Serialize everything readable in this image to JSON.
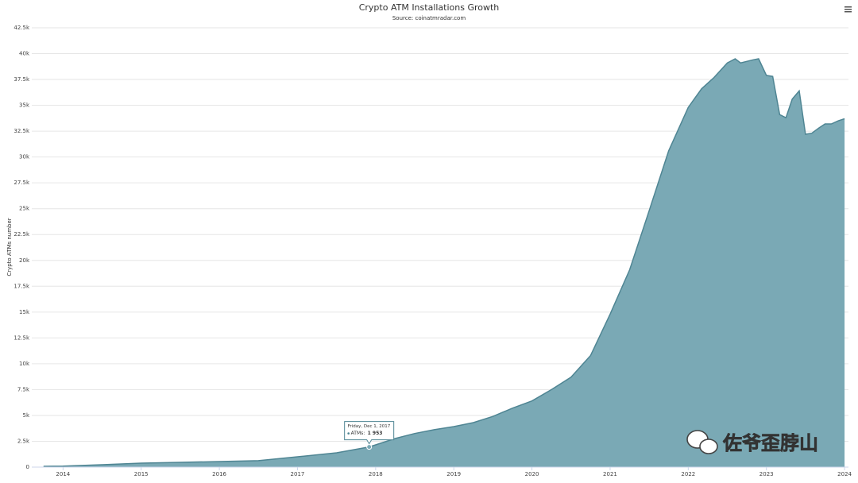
{
  "chart_data": {
    "type": "area",
    "title": "Crypto ATM Installations Growth",
    "subtitle": "Source: coinatmradar.com",
    "y_label": "Crypto ATMs number",
    "color": "#7aa9b5",
    "line_color": "#4f8593",
    "grid": true,
    "x": [
      2013.75,
      2014.0,
      2014.5,
      2015.0,
      2015.5,
      2016.0,
      2016.5,
      2017.0,
      2017.5,
      2017.917,
      2018.0,
      2018.25,
      2018.5,
      2018.75,
      2019.0,
      2019.25,
      2019.5,
      2019.75,
      2020.0,
      2020.25,
      2020.5,
      2020.75,
      2021.0,
      2021.25,
      2021.5,
      2021.75,
      2022.0,
      2022.17,
      2022.33,
      2022.5,
      2022.6,
      2022.67,
      2022.83,
      2022.9,
      2023.0,
      2023.08,
      2023.17,
      2023.25,
      2023.33,
      2023.42,
      2023.5,
      2023.58,
      2023.67,
      2023.75,
      2023.83,
      2023.92,
      2024.0
    ],
    "values": [
      80,
      100,
      230,
      385,
      460,
      540,
      620,
      1000,
      1380,
      1953,
      2150,
      2770,
      3250,
      3620,
      3920,
      4300,
      4900,
      5700,
      6400,
      7500,
      8700,
      10800,
      14800,
      19100,
      24800,
      30600,
      34800,
      36600,
      37700,
      39100,
      39500,
      39100,
      39400,
      39500,
      37900,
      37800,
      34100,
      33800,
      35600,
      36400,
      32200,
      32300,
      32800,
      33200,
      33200,
      33500,
      33700
    ],
    "xlim": [
      2013.6,
      2024.05
    ],
    "xticks": [
      2014,
      2015,
      2016,
      2017,
      2018,
      2019,
      2020,
      2021,
      2022,
      2023,
      2024
    ],
    "ylim": [
      0,
      42500
    ],
    "yticks": [
      0,
      {
        "value": 2500,
        "label": "2.5k"
      },
      {
        "value": 5000,
        "label": "5k"
      },
      {
        "value": 7500,
        "label": "7.5k"
      },
      {
        "value": 10000,
        "label": "10k"
      },
      {
        "value": 12500,
        "label": "12.5k"
      },
      {
        "value": 15000,
        "label": "15k"
      },
      {
        "value": 17500,
        "label": "17.5k"
      },
      {
        "value": 20000,
        "label": "20k"
      },
      {
        "value": 22500,
        "label": "22.5k"
      },
      {
        "value": 25000,
        "label": "25k"
      },
      {
        "value": 27500,
        "label": "27.5k"
      },
      {
        "value": 30000,
        "label": "30k"
      },
      {
        "value": 32500,
        "label": "32.5k"
      },
      {
        "value": 35000,
        "label": "35k"
      },
      {
        "value": 37500,
        "label": "37.5k"
      },
      {
        "value": 40000,
        "label": "40k"
      },
      {
        "value": 42500,
        "label": "42.5k"
      }
    ],
    "tooltip": {
      "date": "Friday, Dec 1, 2017",
      "series": "ATMs:",
      "value": {
        "value": 1953,
        "label": "1 953"
      }
    },
    "watermark": "佐爷歪脖山"
  }
}
